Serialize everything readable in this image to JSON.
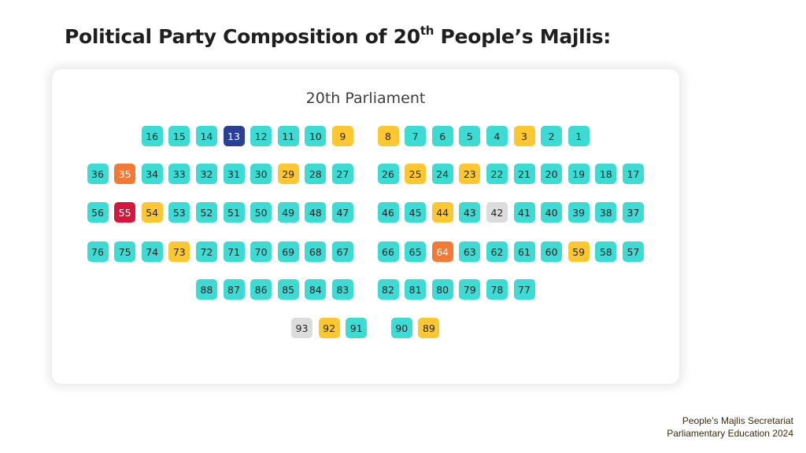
{
  "slide": {
    "title_prefix": "Political Party Composition of 20",
    "title_sup": "th",
    "title_suffix": " People’s Majlis:"
  },
  "footer": {
    "line1": "People’s Majlis Secretariat",
    "line2": "Parliamentary Education 2024"
  },
  "chart": {
    "title": "20th Parliament",
    "party_colors": {
      "teal": "#3cdbd3",
      "yellow": "#fcc730",
      "navy": "#2b3f95",
      "orange": "#f27a35",
      "red": "#d7163f",
      "gray": "#dcdcdc"
    },
    "rows": [
      [
        [
          "16",
          "teal"
        ],
        [
          "15",
          "teal"
        ],
        [
          "14",
          "teal"
        ],
        [
          "13",
          "navy"
        ],
        [
          "12",
          "teal"
        ],
        [
          "11",
          "teal"
        ],
        [
          "10",
          "teal"
        ],
        [
          "9",
          "yellow"
        ],
        [
          "8",
          "yellow"
        ],
        [
          "7",
          "teal"
        ],
        [
          "6",
          "teal"
        ],
        [
          "5",
          "teal"
        ],
        [
          "4",
          "teal"
        ],
        [
          "3",
          "yellow"
        ],
        [
          "2",
          "teal"
        ],
        [
          "1",
          "teal"
        ]
      ],
      [
        [
          "36",
          "teal"
        ],
        [
          "35",
          "orange"
        ],
        [
          "34",
          "teal"
        ],
        [
          "33",
          "teal"
        ],
        [
          "32",
          "teal"
        ],
        [
          "31",
          "teal"
        ],
        [
          "30",
          "teal"
        ],
        [
          "29",
          "yellow"
        ],
        [
          "28",
          "teal"
        ],
        [
          "27",
          "teal"
        ],
        [
          "26",
          "teal"
        ],
        [
          "25",
          "yellow"
        ],
        [
          "24",
          "teal"
        ],
        [
          "23",
          "yellow"
        ],
        [
          "22",
          "teal"
        ],
        [
          "21",
          "teal"
        ],
        [
          "20",
          "teal"
        ],
        [
          "19",
          "teal"
        ],
        [
          "18",
          "teal"
        ],
        [
          "17",
          "teal"
        ]
      ],
      [
        [
          "56",
          "teal"
        ],
        [
          "55",
          "red"
        ],
        [
          "54",
          "yellow"
        ],
        [
          "53",
          "teal"
        ],
        [
          "52",
          "teal"
        ],
        [
          "51",
          "teal"
        ],
        [
          "50",
          "teal"
        ],
        [
          "49",
          "teal"
        ],
        [
          "48",
          "teal"
        ],
        [
          "47",
          "teal"
        ],
        [
          "46",
          "teal"
        ],
        [
          "45",
          "teal"
        ],
        [
          "44",
          "yellow"
        ],
        [
          "43",
          "teal"
        ],
        [
          "42",
          "gray"
        ],
        [
          "41",
          "teal"
        ],
        [
          "40",
          "teal"
        ],
        [
          "39",
          "teal"
        ],
        [
          "38",
          "teal"
        ],
        [
          "37",
          "teal"
        ]
      ],
      [
        [
          "76",
          "teal"
        ],
        [
          "75",
          "teal"
        ],
        [
          "74",
          "teal"
        ],
        [
          "73",
          "yellow"
        ],
        [
          "72",
          "teal"
        ],
        [
          "71",
          "teal"
        ],
        [
          "70",
          "teal"
        ],
        [
          "69",
          "teal"
        ],
        [
          "68",
          "teal"
        ],
        [
          "67",
          "teal"
        ],
        [
          "66",
          "teal"
        ],
        [
          "65",
          "teal"
        ],
        [
          "64",
          "orange"
        ],
        [
          "63",
          "teal"
        ],
        [
          "62",
          "teal"
        ],
        [
          "61",
          "teal"
        ],
        [
          "60",
          "teal"
        ],
        [
          "59",
          "yellow"
        ],
        [
          "58",
          "teal"
        ],
        [
          "57",
          "teal"
        ]
      ],
      [
        [
          "88",
          "teal"
        ],
        [
          "87",
          "teal"
        ],
        [
          "86",
          "teal"
        ],
        [
          "85",
          "teal"
        ],
        [
          "84",
          "teal"
        ],
        [
          "83",
          "teal"
        ],
        [
          "82",
          "teal"
        ],
        [
          "81",
          "teal"
        ],
        [
          "80",
          "teal"
        ],
        [
          "79",
          "teal"
        ],
        [
          "78",
          "teal"
        ],
        [
          "77",
          "teal"
        ]
      ],
      [
        [
          "93",
          "gray"
        ],
        [
          "92",
          "yellow"
        ],
        [
          "91",
          "teal"
        ],
        [
          "90",
          "teal"
        ],
        [
          "89",
          "yellow"
        ]
      ]
    ]
  }
}
